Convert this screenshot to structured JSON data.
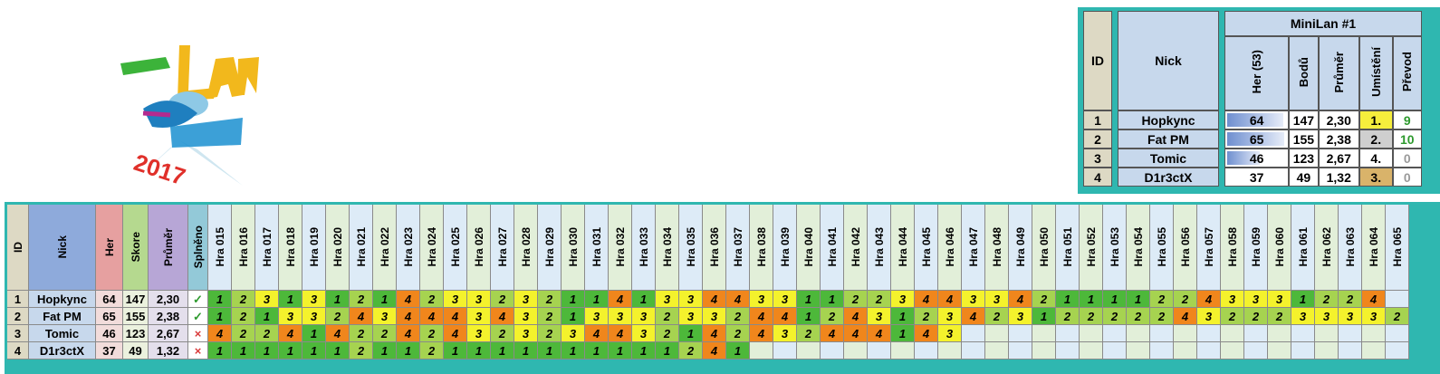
{
  "logo": {
    "year_text": "2017",
    "icon": "minilan-logo"
  },
  "summary": {
    "title": "MiniLan #1",
    "col_id": "ID",
    "col_nick": "Nick",
    "col_her": "Her (53)",
    "col_bodu": "Bodů",
    "col_prumer": "Průměr",
    "col_umisteni": "Umístění",
    "col_prevod": "Převod",
    "rows": [
      {
        "id": "1",
        "nick": "Hopkync",
        "her": "64",
        "her_fill": 0.95,
        "bodu": "147",
        "prumer": "2,30",
        "umisteni": "1.",
        "um_color": "#f6ee3c",
        "prevod": "9",
        "prevod_color": "#2e9a2e"
      },
      {
        "id": "2",
        "nick": "Fat PM",
        "her": "65",
        "her_fill": 0.97,
        "bodu": "155",
        "prumer": "2,38",
        "umisteni": "2.",
        "um_color": "#cfcfcf",
        "prevod": "10",
        "prevod_color": "#2e9a2e"
      },
      {
        "id": "3",
        "nick": "Tomic",
        "her": "46",
        "her_fill": 0.55,
        "bodu": "123",
        "prumer": "2,67",
        "umisteni": "4.",
        "um_color": "#ffffff",
        "prevod": "0",
        "prevod_color": "#9a9a9a"
      },
      {
        "id": "4",
        "nick": "D1r3ctX",
        "her": "37",
        "her_fill": 0,
        "bodu": "49",
        "prumer": "1,32",
        "umisteni": "3.",
        "um_color": "#d9b36a",
        "prevod": "0",
        "prevod_color": "#9a9a9a"
      }
    ]
  },
  "grid": {
    "h_id": "ID",
    "h_nick": "Nick",
    "h_her": "Her",
    "h_skore": "Skore",
    "h_prumer": "Průměr",
    "h_splneno": "Splněno",
    "games": [
      "Hra 015",
      "Hra 016",
      "Hra 017",
      "Hra 018",
      "Hra 019",
      "Hra 020",
      "Hra 021",
      "Hra 022",
      "Hra 023",
      "Hra 024",
      "Hra 025",
      "Hra 026",
      "Hra 027",
      "Hra 028",
      "Hra 029",
      "Hra 030",
      "Hra 031",
      "Hra 032",
      "Hra 033",
      "Hra 034",
      "Hra 035",
      "Hra 036",
      "Hra 037",
      "Hra 038",
      "Hra 039",
      "Hra 040",
      "Hra 041",
      "Hra 042",
      "Hra 043",
      "Hra 044",
      "Hra 045",
      "Hra 046",
      "Hra 047",
      "Hra 048",
      "Hra 049",
      "Hra 050",
      "Hra 051",
      "Hra 052",
      "Hra 053",
      "Hra 054",
      "Hra 055",
      "Hra 056",
      "Hra 057",
      "Hra 058",
      "Hra 059",
      "Hra 060",
      "Hra 061",
      "Hra 062",
      "Hra 063",
      "Hra 064",
      "Hra 065"
    ],
    "rows": [
      {
        "id": "1",
        "nick": "Hopkync",
        "her": "64",
        "skore": "147",
        "prumer": "2,30",
        "splneno": "✓",
        "ok": true,
        "scores": [
          "1",
          "2",
          "3",
          "1",
          "3",
          "1",
          "2",
          "1",
          "4",
          "2",
          "3",
          "3",
          "2",
          "3",
          "2",
          "1",
          "1",
          "4",
          "1",
          "3",
          "3",
          "4",
          "4",
          "3",
          "3",
          "1",
          "1",
          "2",
          "2",
          "3",
          "4",
          "4",
          "3",
          "3",
          "4",
          "2",
          "1",
          "1",
          "1",
          "1",
          "2",
          "2",
          "4",
          "3",
          "3",
          "3",
          "1",
          "2",
          "2",
          "4",
          ""
        ]
      },
      {
        "id": "2",
        "nick": "Fat PM",
        "her": "65",
        "skore": "155",
        "prumer": "2,38",
        "splneno": "✓",
        "ok": true,
        "scores": [
          "1",
          "2",
          "1",
          "3",
          "3",
          "2",
          "4",
          "3",
          "4",
          "4",
          "4",
          "3",
          "4",
          "3",
          "2",
          "1",
          "3",
          "3",
          "3",
          "2",
          "3",
          "3",
          "2",
          "4",
          "4",
          "1",
          "2",
          "4",
          "3",
          "1",
          "2",
          "3",
          "4",
          "2",
          "3",
          "1",
          "2",
          "2",
          "2",
          "2",
          "2",
          "4",
          "3",
          "2",
          "2",
          "2",
          "3",
          "3",
          "3",
          "3",
          "2"
        ]
      },
      {
        "id": "3",
        "nick": "Tomic",
        "her": "46",
        "skore": "123",
        "prumer": "2,67",
        "splneno": "×",
        "ok": false,
        "scores": [
          "4",
          "2",
          "2",
          "4",
          "1",
          "4",
          "2",
          "2",
          "4",
          "2",
          "4",
          "3",
          "2",
          "3",
          "2",
          "3",
          "4",
          "4",
          "3",
          "2",
          "1",
          "4",
          "2",
          "4",
          "3",
          "2",
          "4",
          "4",
          "4",
          "1",
          "4",
          "3",
          "",
          "",
          "",
          "",
          "",
          "",
          "",
          "",
          "",
          "",
          "",
          "",
          "",
          "",
          "",
          "",
          "",
          "",
          ""
        ]
      },
      {
        "id": "4",
        "nick": "D1r3ctX",
        "her": "37",
        "skore": "49",
        "prumer": "1,32",
        "splneno": "×",
        "ok": false,
        "scores": [
          "1",
          "1",
          "1",
          "1",
          "1",
          "1",
          "2",
          "1",
          "1",
          "2",
          "1",
          "1",
          "1",
          "1",
          "1",
          "1",
          "1",
          "1",
          "1",
          "1",
          "2",
          "4",
          "1",
          "",
          "",
          "",
          "",
          "",
          "",
          "",
          "",
          "",
          "",
          "",
          "",
          "",
          "",
          "",
          "",
          "",
          "",
          "",
          "",
          "",
          "",
          "",
          "",
          "",
          "",
          "",
          ""
        ]
      }
    ]
  },
  "colors": {
    "score_1": "#4db83a",
    "score_2": "#a6d350",
    "score_3": "#f4f22c",
    "score_4": "#f0861c",
    "empty_odd": "#ddebf7",
    "empty_even": "#e2efd9",
    "teal": "#2fb7b0"
  }
}
